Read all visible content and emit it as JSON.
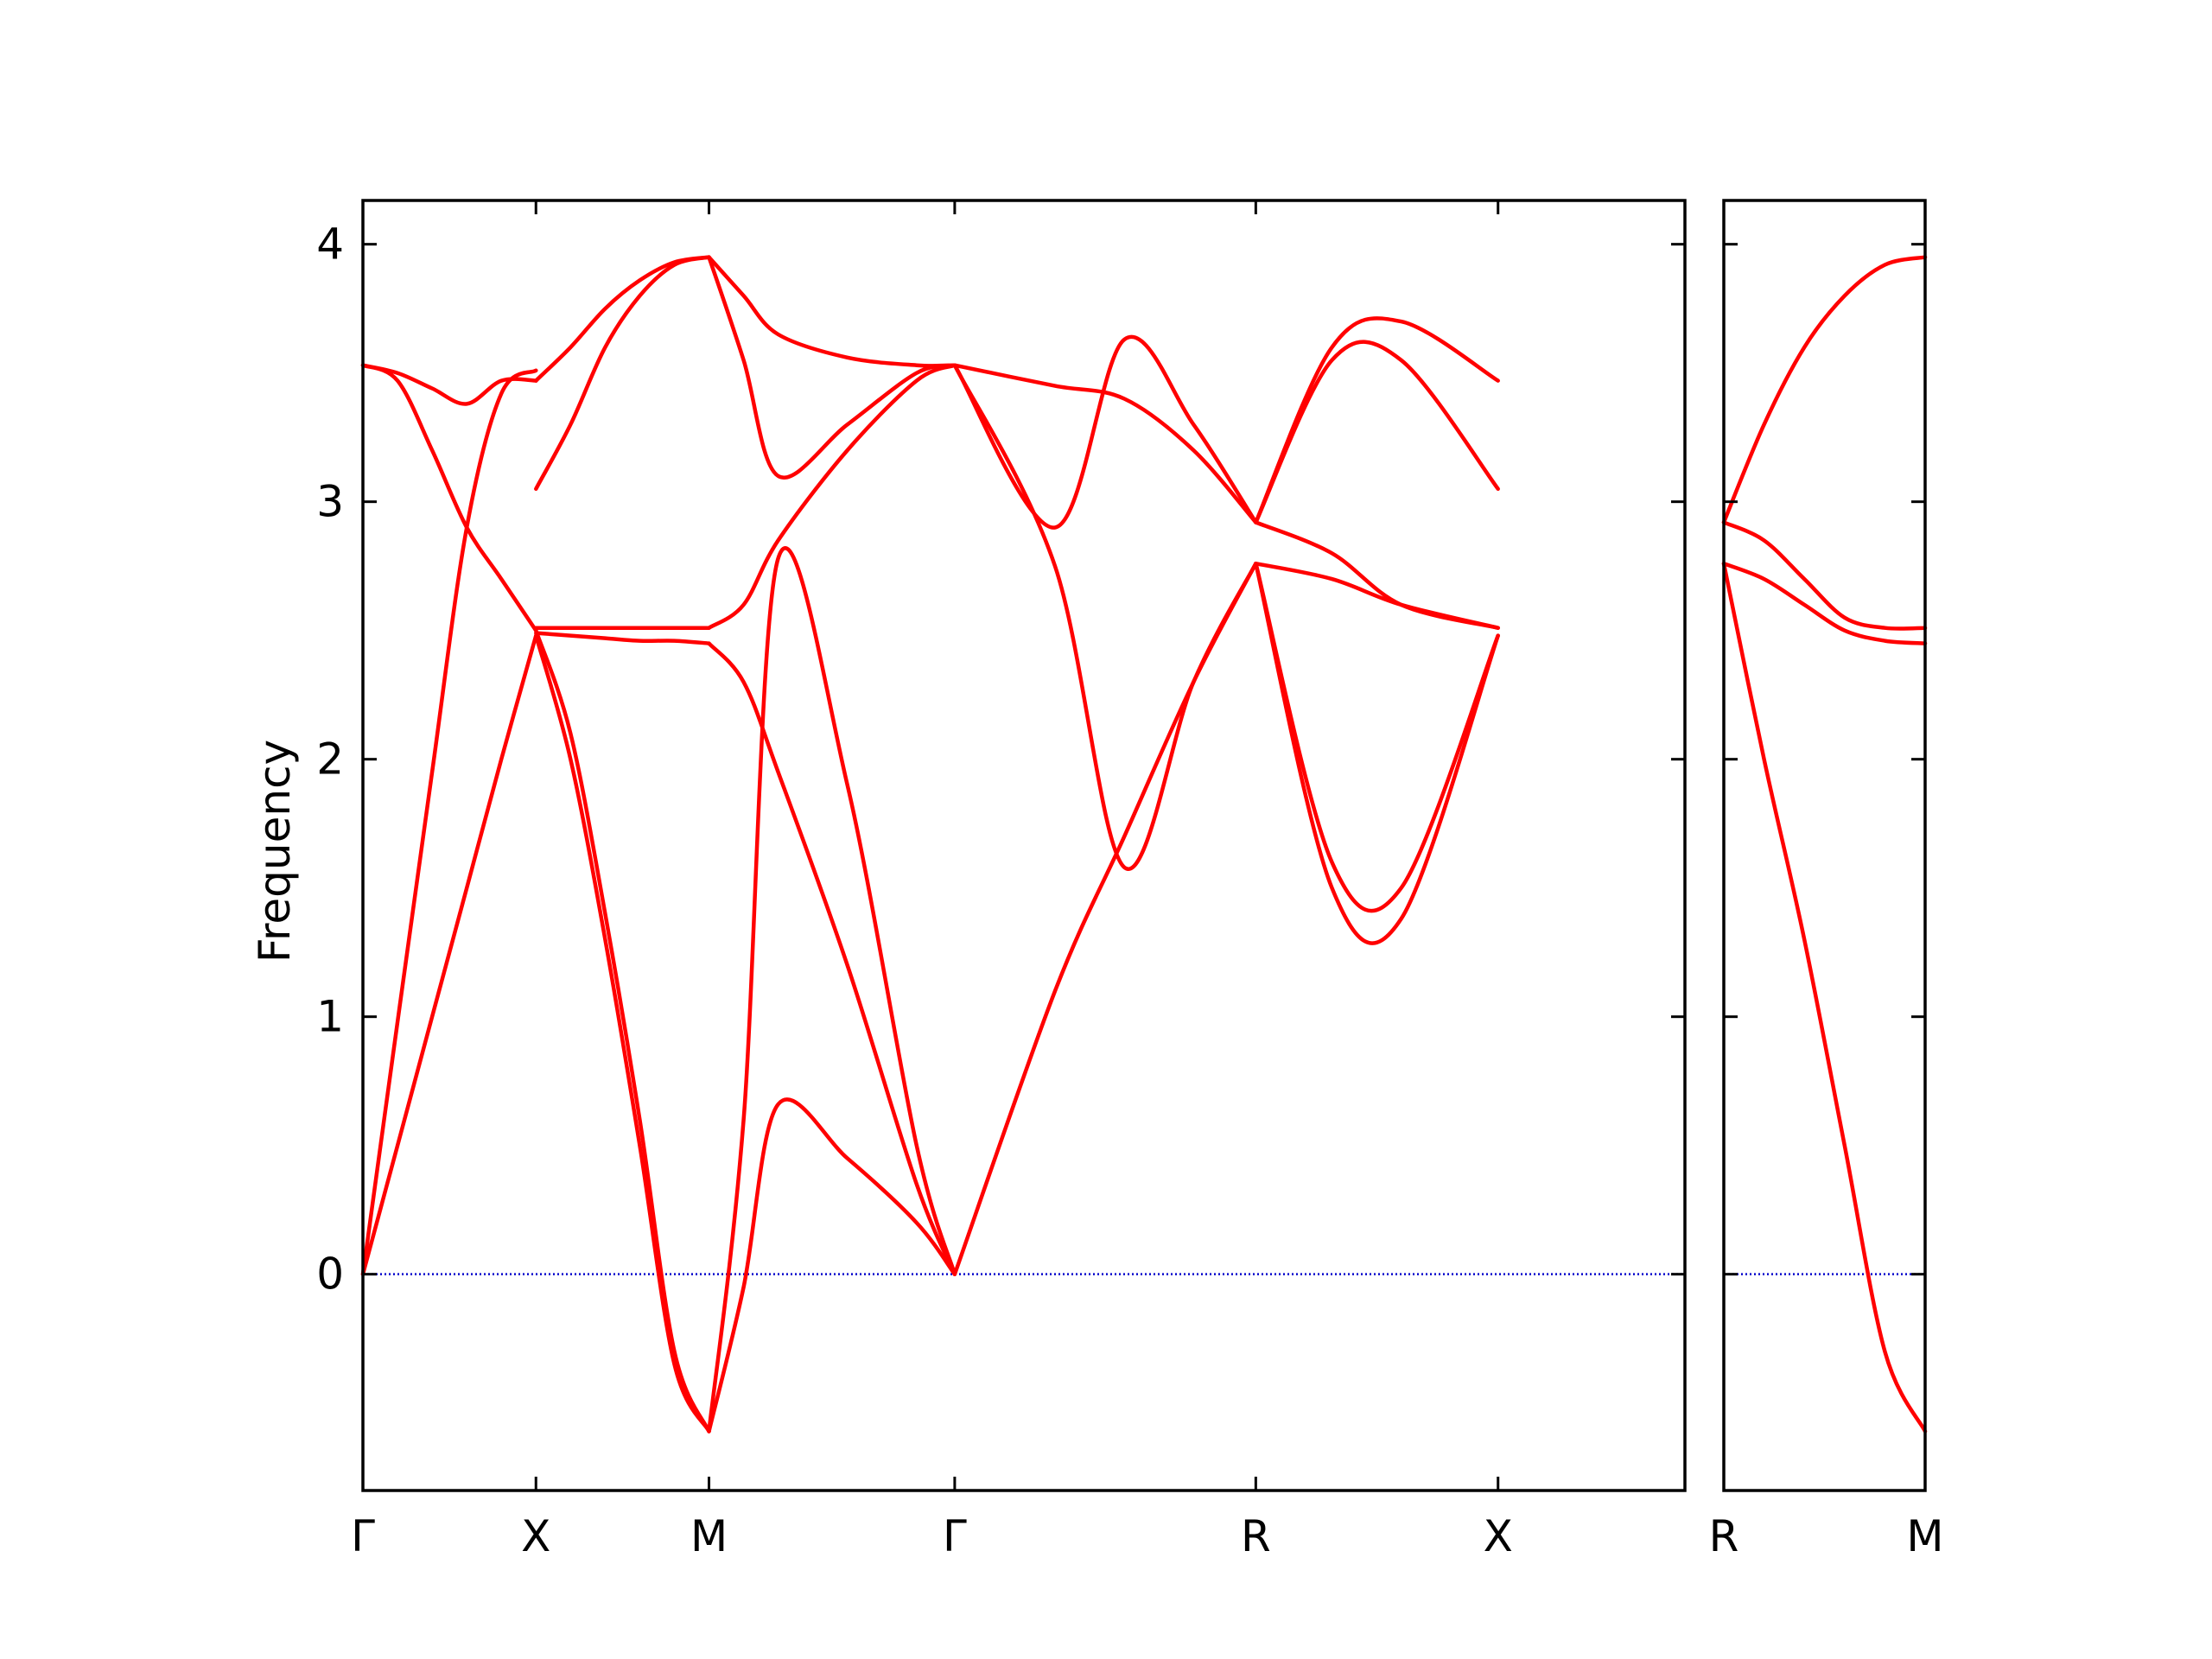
{
  "chart_data": {
    "type": "line",
    "title": "",
    "ylabel": "Frequency",
    "xlabel": "",
    "ylim": [
      -0.84,
      4.17
    ],
    "yticks": [
      0,
      1,
      2,
      3,
      4
    ],
    "grid": false,
    "legend": "none",
    "colors": {
      "bands": "#ff0000",
      "zero_line": "#0000cc",
      "frame": "#000000"
    },
    "panels": [
      {
        "name": "main",
        "xlim": [
          0,
          3.82
        ],
        "xticks": [
          {
            "label": "Γ",
            "x": 0
          },
          {
            "label": "X",
            "x": 0.5
          },
          {
            "label": "M",
            "x": 1.0
          },
          {
            "label": "Γ",
            "x": 1.71
          },
          {
            "label": "R",
            "x": 2.58
          },
          {
            "label": "X",
            "x": 3.28
          }
        ],
        "series": [
          {
            "points": [
              [
                0,
                0
              ],
              [
                0.1,
                0.98
              ],
              [
                0.2,
                1.95
              ],
              [
                0.3,
                2.9
              ],
              [
                0.4,
                3.42
              ],
              [
                0.5,
                3.51
              ]
            ]
          },
          {
            "points": [
              [
                0,
                0
              ],
              [
                0.1,
                0.5
              ],
              [
                0.2,
                1.0
              ],
              [
                0.3,
                1.5
              ],
              [
                0.4,
                2.0
              ],
              [
                0.5,
                2.48
              ]
            ]
          },
          {
            "points": [
              [
                0,
                3.53
              ],
              [
                0.1,
                3.5
              ],
              [
                0.2,
                3.44
              ],
              [
                0.3,
                3.38
              ],
              [
                0.4,
                3.47
              ],
              [
                0.5,
                3.47
              ]
            ]
          },
          {
            "points": [
              [
                0,
                3.53
              ],
              [
                0.1,
                3.47
              ],
              [
                0.2,
                3.2
              ],
              [
                0.3,
                2.9
              ],
              [
                0.4,
                2.7
              ],
              [
                0.5,
                2.5
              ]
            ]
          },
          {
            "points": [
              [
                0.5,
                3.05
              ],
              [
                0.6,
                3.3
              ],
              [
                0.7,
                3.6
              ],
              [
                0.8,
                3.8
              ],
              [
                0.9,
                3.92
              ],
              [
                1.0,
                3.95
              ]
            ]
          },
          {
            "points": [
              [
                0.5,
                3.47
              ],
              [
                0.6,
                3.6
              ],
              [
                0.7,
                3.75
              ],
              [
                0.8,
                3.86
              ],
              [
                0.9,
                3.93
              ],
              [
                1.0,
                3.95
              ]
            ]
          },
          {
            "points": [
              [
                0.5,
                2.51
              ],
              [
                0.6,
                2.51
              ],
              [
                0.7,
                2.51
              ],
              [
                0.8,
                2.51
              ],
              [
                0.9,
                2.51
              ],
              [
                1.0,
                2.51
              ]
            ]
          },
          {
            "points": [
              [
                0.5,
                2.49
              ],
              [
                0.6,
                2.48
              ],
              [
                0.7,
                2.47
              ],
              [
                0.8,
                2.46
              ],
              [
                0.9,
                2.46
              ],
              [
                1.0,
                2.45
              ]
            ]
          },
          {
            "points": [
              [
                0.5,
                2.48
              ],
              [
                0.6,
                2.0
              ],
              [
                0.7,
                1.3
              ],
              [
                0.8,
                0.5
              ],
              [
                0.9,
                -0.35
              ],
              [
                1.0,
                -0.61
              ]
            ]
          },
          {
            "points": [
              [
                0.5,
                2.5
              ],
              [
                0.6,
                2.1
              ],
              [
                0.7,
                1.4
              ],
              [
                0.8,
                0.6
              ],
              [
                0.9,
                -0.3
              ],
              [
                1.0,
                -0.61
              ]
            ]
          },
          {
            "points": [
              [
                1.0,
                3.95
              ],
              [
                1.1,
                3.55
              ],
              [
                1.2,
                3.1
              ],
              [
                1.4,
                3.3
              ],
              [
                1.6,
                3.5
              ],
              [
                1.71,
                3.53
              ]
            ]
          },
          {
            "points": [
              [
                1.0,
                3.95
              ],
              [
                1.1,
                3.8
              ],
              [
                1.2,
                3.65
              ],
              [
                1.4,
                3.56
              ],
              [
                1.6,
                3.53
              ],
              [
                1.71,
                3.53
              ]
            ]
          },
          {
            "points": [
              [
                1.0,
                2.51
              ],
              [
                1.1,
                2.6
              ],
              [
                1.2,
                2.85
              ],
              [
                1.4,
                3.2
              ],
              [
                1.6,
                3.47
              ],
              [
                1.71,
                3.53
              ]
            ]
          },
          {
            "points": [
              [
                1.0,
                -0.61
              ],
              [
                1.1,
                0.6
              ],
              [
                1.2,
                2.78
              ],
              [
                1.4,
                1.9
              ],
              [
                1.6,
                0.5
              ],
              [
                1.71,
                0
              ]
            ]
          },
          {
            "points": [
              [
                1.0,
                -0.61
              ],
              [
                1.1,
                -0.05
              ],
              [
                1.2,
                0.66
              ],
              [
                1.4,
                0.45
              ],
              [
                1.6,
                0.2
              ],
              [
                1.71,
                0
              ]
            ]
          },
          {
            "points": [
              [
                1.0,
                2.45
              ],
              [
                1.1,
                2.3
              ],
              [
                1.2,
                1.95
              ],
              [
                1.4,
                1.2
              ],
              [
                1.6,
                0.35
              ],
              [
                1.71,
                0
              ]
            ]
          },
          {
            "points": [
              [
                1.71,
                0
              ],
              [
                2.0,
                1.1
              ],
              [
                2.2,
                1.7
              ],
              [
                2.4,
                2.3
              ],
              [
                2.58,
                2.76
              ]
            ]
          },
          {
            "points": [
              [
                1.71,
                3.53
              ],
              [
                2.0,
                2.75
              ],
              [
                2.2,
                1.58
              ],
              [
                2.4,
                2.3
              ],
              [
                2.58,
                2.76
              ]
            ]
          },
          {
            "points": [
              [
                1.71,
                3.53
              ],
              [
                2.0,
                2.9
              ],
              [
                2.2,
                3.63
              ],
              [
                2.4,
                3.3
              ],
              [
                2.58,
                2.92
              ]
            ]
          },
          {
            "points": [
              [
                1.71,
                3.53
              ],
              [
                2.0,
                3.45
              ],
              [
                2.2,
                3.4
              ],
              [
                2.4,
                3.2
              ],
              [
                2.58,
                2.92
              ]
            ]
          },
          {
            "points": [
              [
                2.58,
                2.92
              ],
              [
                2.8,
                3.55
              ],
              [
                3.0,
                3.55
              ],
              [
                3.28,
                3.05
              ]
            ]
          },
          {
            "points": [
              [
                2.58,
                2.92
              ],
              [
                2.8,
                3.6
              ],
              [
                3.0,
                3.7
              ],
              [
                3.28,
                3.47
              ]
            ]
          },
          {
            "points": [
              [
                2.58,
                2.92
              ],
              [
                2.8,
                2.8
              ],
              [
                3.0,
                2.6
              ],
              [
                3.28,
                2.51
              ]
            ]
          },
          {
            "points": [
              [
                2.58,
                2.76
              ],
              [
                2.8,
                2.7
              ],
              [
                3.0,
                2.6
              ],
              [
                3.28,
                2.51
              ]
            ]
          },
          {
            "points": [
              [
                2.58,
                2.76
              ],
              [
                2.8,
                1.6
              ],
              [
                3.0,
                1.5
              ],
              [
                3.28,
                2.48
              ]
            ]
          },
          {
            "points": [
              [
                2.58,
                2.76
              ],
              [
                2.8,
                1.5
              ],
              [
                3.0,
                1.38
              ],
              [
                3.28,
                2.48
              ]
            ]
          }
        ]
      },
      {
        "name": "segment-R-M",
        "xlim": [
          0,
          0.5
        ],
        "xticks": [
          {
            "label": "R",
            "x": 0
          },
          {
            "label": "M",
            "x": 0.5
          }
        ],
        "series": [
          {
            "points": [
              [
                0,
                2.92
              ],
              [
                0.1,
                3.3
              ],
              [
                0.2,
                3.6
              ],
              [
                0.3,
                3.8
              ],
              [
                0.4,
                3.92
              ],
              [
                0.5,
                3.95
              ]
            ]
          },
          {
            "points": [
              [
                0,
                2.92
              ],
              [
                0.1,
                2.85
              ],
              [
                0.2,
                2.7
              ],
              [
                0.3,
                2.55
              ],
              [
                0.4,
                2.51
              ],
              [
                0.5,
                2.51
              ]
            ]
          },
          {
            "points": [
              [
                0,
                2.76
              ],
              [
                0.1,
                2.7
              ],
              [
                0.2,
                2.6
              ],
              [
                0.3,
                2.5
              ],
              [
                0.4,
                2.46
              ],
              [
                0.5,
                2.45
              ]
            ]
          },
          {
            "points": [
              [
                0,
                2.76
              ],
              [
                0.1,
                2.0
              ],
              [
                0.2,
                1.3
              ],
              [
                0.3,
                0.5
              ],
              [
                0.4,
                -0.3
              ],
              [
                0.5,
                -0.61
              ]
            ]
          }
        ]
      }
    ]
  }
}
